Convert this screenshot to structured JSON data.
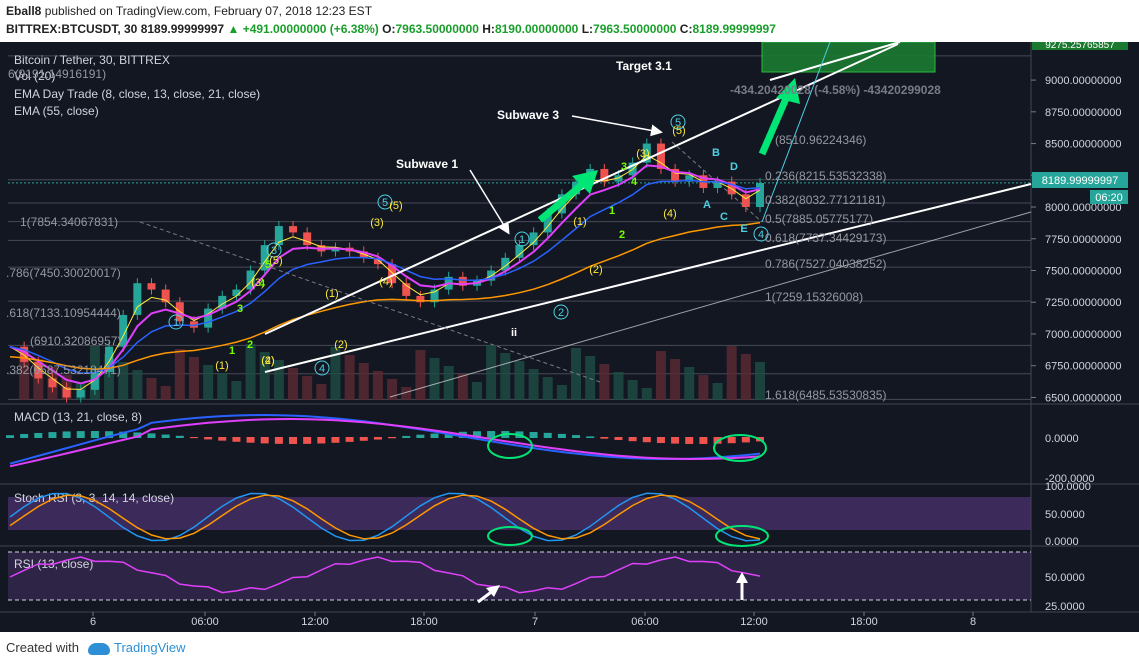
{
  "header": {
    "author": "Eball8",
    "published": "published on TradingView.com, February 07, 2018 12:23 EST",
    "symbol": "BITTREX:BTCUSDT, 30",
    "last": "8189.99999997",
    "change": "+491.00000000 (+6.38%)",
    "o_label": "O:",
    "o": "7963.50000000",
    "h_label": "H:",
    "h": "8190.00000000",
    "l_label": "L:",
    "l": "7963.50000000",
    "c_label": "C:",
    "c": "8189.99999997"
  },
  "legend": {
    "title": "Bitcoin / Tether, 30, BITTREX",
    "vol": "Vol (20)",
    "ema1": "EMA Day Trade (8, close, 13, close, 21, close)",
    "ema2": "EMA (55, close)"
  },
  "annotations": {
    "target": "Target 3.1",
    "subwave3": "Subwave 3",
    "subwave1": "Subwave 1",
    "measure": "-434.20420028 (-4.58%) -43420299028"
  },
  "price_axis": {
    "ticks": [
      "9000.00000000",
      "8750.00000000",
      "8500.00000000",
      "8250.00000000",
      "8000.00000000",
      "7750.00000000",
      "7500.00000000",
      "7250.00000000",
      "7000.00000000",
      "6750.00000000",
      "6500.00000000"
    ],
    "last_price": "8189.99999997",
    "countdown": "06:20",
    "top_label": "9275.25765857"
  },
  "fib_labels": [
    "6(9191.14916191)",
    "0.236(8215.53532338)",
    "0.382(8032.77121181)",
    "0.5(7885.05775177)",
    "0.618(7737.34429173)",
    "0.786(7527.04038252)",
    "1(7259.15326008)",
    "1.618(6485.53530835)",
    "(8510.96224346)",
    "1(7854.34067831)",
    ".786(7450.30020017)",
    ".618(7133.10954444)",
    "(6910.32086957)",
    ".382(6687.53218471)"
  ],
  "wave_labels": {
    "circled": [
      "1",
      "3",
      "4",
      "5",
      "1",
      "2",
      "5",
      "4"
    ],
    "paren": [
      "(1)",
      "(2)",
      "(3)",
      "(4)",
      "(5)",
      "(1)",
      "(2)",
      "(3)",
      "(4)",
      "(5)",
      "(1)",
      "(2)",
      "(3)",
      "(4)",
      "(5)"
    ],
    "plain": [
      "1",
      "2",
      "3",
      "4",
      "5",
      "1",
      "2",
      "3",
      "4",
      "ii"
    ],
    "abc": [
      "A",
      "B",
      "C",
      "D",
      "E"
    ]
  },
  "macd": {
    "title": "MACD (13, 21, close, 8)",
    "ticks": [
      "0.0000",
      "-200.0000"
    ]
  },
  "stoch": {
    "title": "Stoch RSI (3, 3, 14, 14, close)",
    "ticks": [
      "100.0000",
      "50.0000",
      "0.0000"
    ]
  },
  "rsi": {
    "title": "RSI (13, close)",
    "ticks": [
      "50.0000",
      "25.0000"
    ]
  },
  "time_axis": {
    "ticks": [
      "6",
      "06:00",
      "12:00",
      "18:00",
      "7",
      "06:00",
      "12:00",
      "18:00",
      "8"
    ]
  },
  "footer": {
    "created": "Created with",
    "brand": "TradingView"
  },
  "colors": {
    "bg": "#131722",
    "up": "#26a69a",
    "down": "#ef5350",
    "ema_fast": "#ffeb3b",
    "ema_mid": "#e040fb",
    "ema_slow": "#2962ff",
    "ema55": "#ff9800",
    "green": "#00e676",
    "cyan": "#4dd0e1"
  },
  "chart_data": {
    "type": "candlestick",
    "title": "Bitcoin / Tether, 30, BITTREX",
    "x": [
      "6",
      "06:00",
      "12:00",
      "18:00",
      "7",
      "06:00",
      "12:00",
      "18:00",
      "8"
    ],
    "ylim": [
      6480,
      9300
    ],
    "close_path": [
      6900,
      6780,
      6650,
      6580,
      6500,
      6560,
      6700,
      6900,
      7150,
      7400,
      7350,
      7250,
      7100,
      7050,
      7200,
      7300,
      7350,
      7500,
      7700,
      7850,
      7800,
      7700,
      7650,
      7680,
      7650,
      7600,
      7550,
      7400,
      7300,
      7250,
      7350,
      7450,
      7380,
      7420,
      7500,
      7600,
      7700,
      7800,
      7950,
      8100,
      8200,
      8300,
      8200,
      8250,
      8350,
      8500,
      8300,
      8200,
      8250,
      8150,
      8200,
      8100,
      8000,
      8189
    ]
  }
}
